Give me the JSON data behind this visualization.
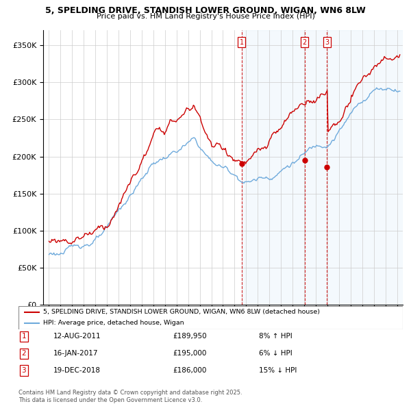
{
  "title_line1": "5, SPELDING DRIVE, STANDISH LOWER GROUND, WIGAN, WN6 8LW",
  "title_line2": "Price paid vs. HM Land Registry's House Price Index (HPI)",
  "ylabel_ticks": [
    "£0",
    "£50K",
    "£100K",
    "£150K",
    "£200K",
    "£250K",
    "£300K",
    "£350K"
  ],
  "ytick_vals": [
    0,
    50000,
    100000,
    150000,
    200000,
    250000,
    300000,
    350000
  ],
  "ylim": [
    0,
    370000
  ],
  "xlim_start": 1994.5,
  "xlim_end": 2025.5,
  "hpi_color": "#6eaadc",
  "hpi_fill_color": "#ddeeff",
  "price_color": "#cc0000",
  "transactions": [
    {
      "num": 1,
      "date": "12-AUG-2011",
      "price": 189950,
      "price_str": "£189,950",
      "pct": "8%",
      "dir": "↑",
      "x_year": 2011.62
    },
    {
      "num": 2,
      "date": "16-JAN-2017",
      "price": 195000,
      "price_str": "£195,000",
      "pct": "6%",
      "dir": "↓",
      "x_year": 2017.04
    },
    {
      "num": 3,
      "date": "19-DEC-2018",
      "price": 186000,
      "price_str": "£186,000",
      "pct": "15%",
      "dir": "↓",
      "x_year": 2018.96
    }
  ],
  "footnote": "Contains HM Land Registry data © Crown copyright and database right 2025.\nThis data is licensed under the Open Government Licence v3.0.",
  "legend_text_red": "5, SPELDING DRIVE, STANDISH LOWER GROUND, WIGAN, WN6 8LW (detached house)",
  "legend_text_blue": "HPI: Average price, detached house, Wigan"
}
